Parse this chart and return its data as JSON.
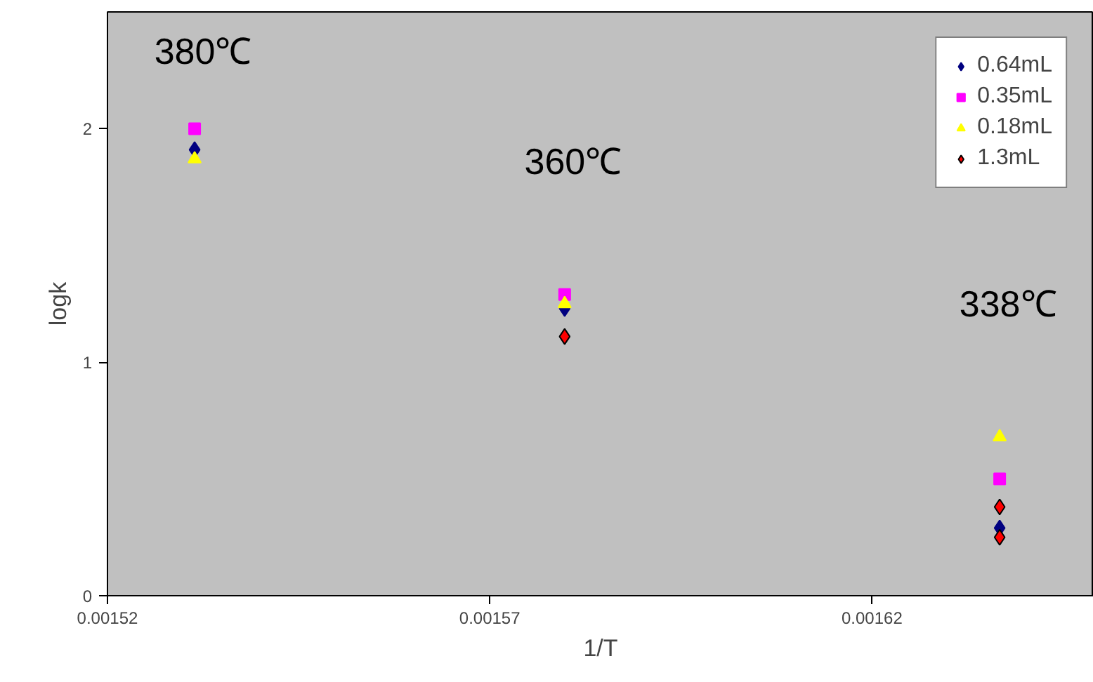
{
  "chart_data": {
    "type": "scatter",
    "xlabel": "1/T",
    "ylabel": "logk",
    "xlim": [
      0.00152,
      0.001649
    ],
    "ylim": [
      0,
      2.5
    ],
    "xticks": [
      0.00152,
      0.00157,
      0.00162
    ],
    "yticks": [
      0,
      1,
      2
    ],
    "grid": false,
    "legend": "top right",
    "series": [
      {
        "name": "0.64mL",
        "color": "#000080",
        "marker": "diamond",
        "x": [
          0.0015314,
          0.0015798,
          0.0016367
        ],
        "values": [
          1.91,
          1.23,
          0.29
        ]
      },
      {
        "name": "0.35mL",
        "color": "#ff00ff",
        "marker": "square",
        "x": [
          0.0015314,
          0.0015798,
          0.0016367
        ],
        "values": [
          2.0,
          1.29,
          0.5
        ]
      },
      {
        "name": "0.18mL",
        "color": "#ffff00",
        "marker": "triangle",
        "x": [
          0.0015314,
          0.0015798,
          0.0016367
        ],
        "values": [
          1.87,
          1.25,
          0.68
        ]
      },
      {
        "name": "1.3mL",
        "color": "#ff0000",
        "marker": "diamond",
        "x": [
          0.0015798,
          0.0016367,
          0.0016367
        ],
        "values": [
          1.11,
          0.38,
          0.25
        ]
      }
    ],
    "annotations": [
      "380℃",
      "360℃",
      "338℃"
    ]
  }
}
